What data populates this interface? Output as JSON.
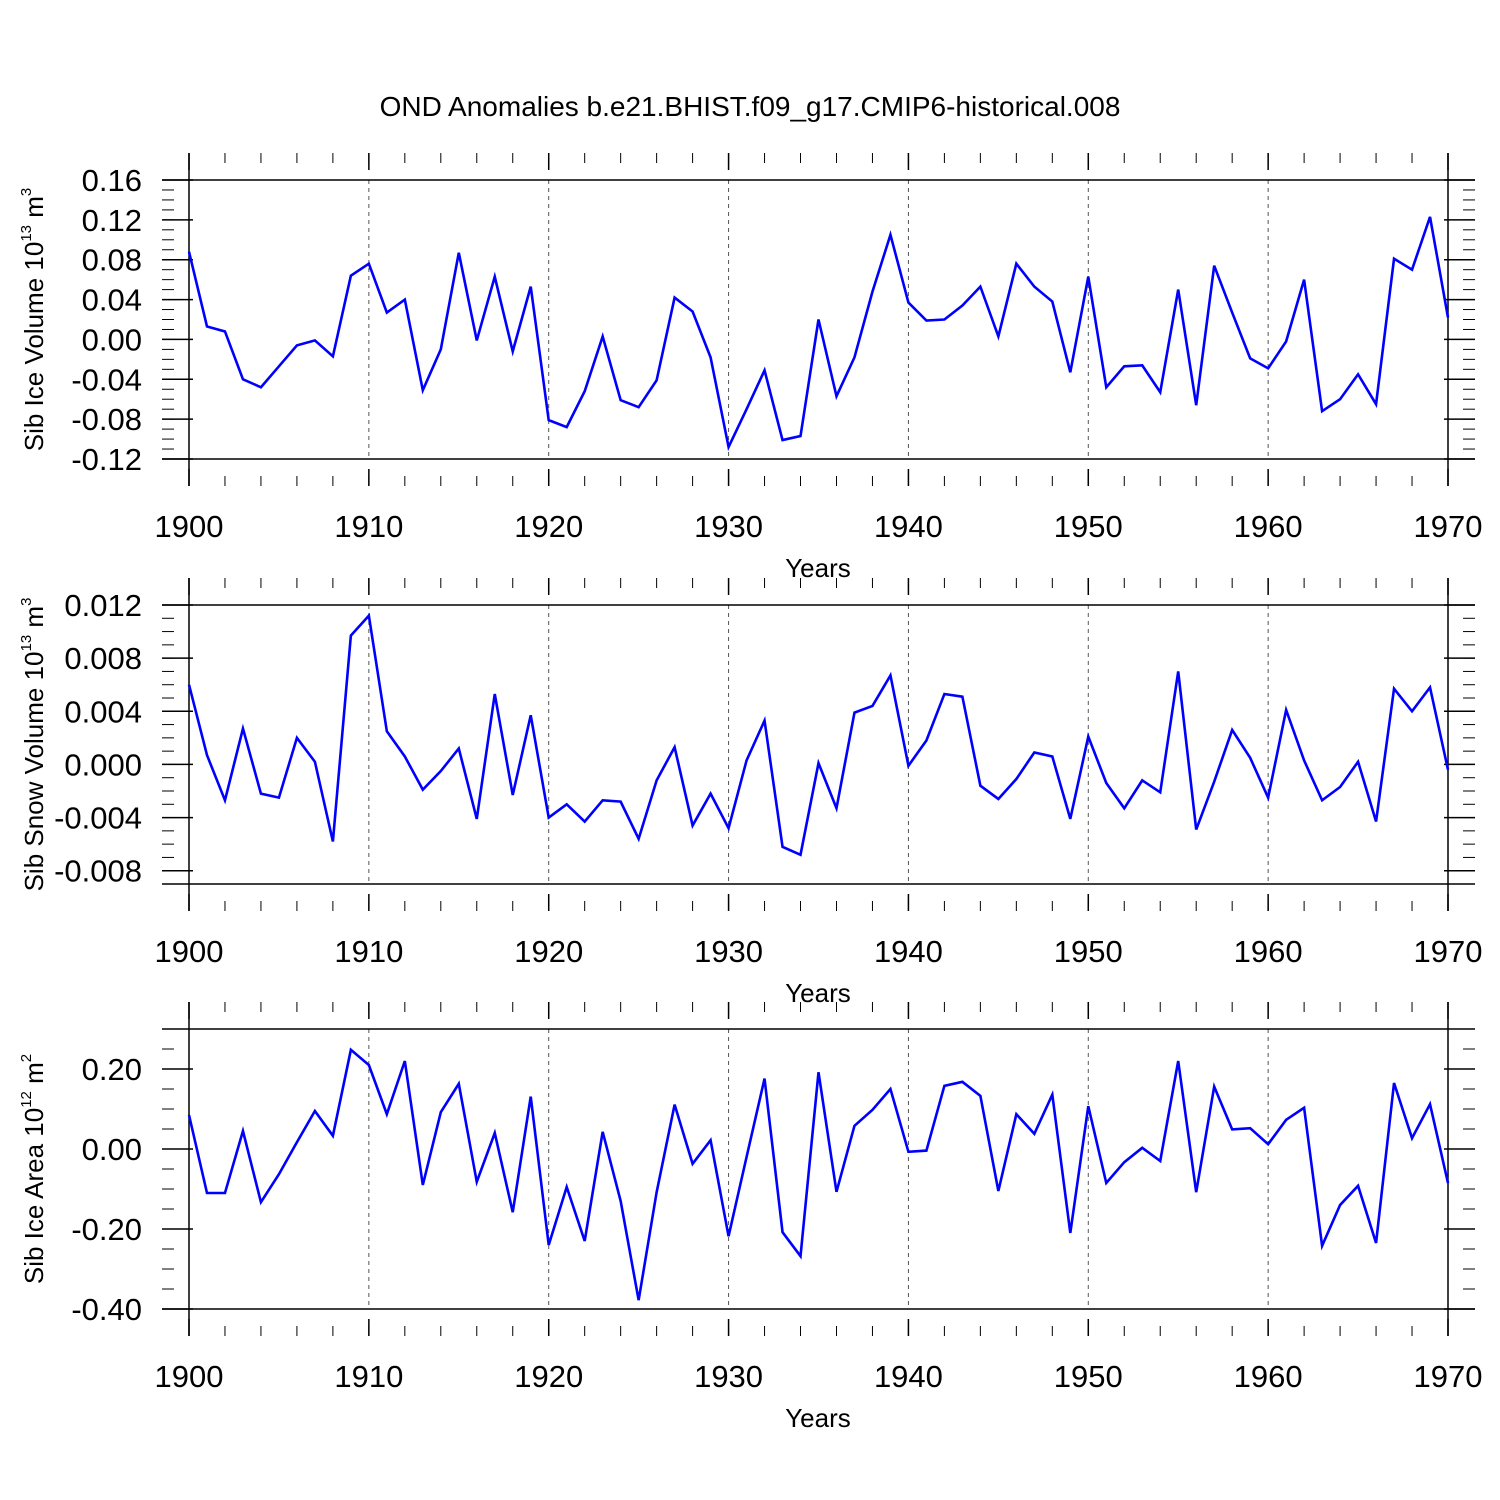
{
  "title": "OND Anomalies b.e21.BHIST.f09_g17.CMIP6-historical.008",
  "style": {
    "line_color": "#0000ff",
    "axis_color": "#000000",
    "grid_color": "#555555"
  },
  "chart_data": [
    {
      "type": "line",
      "ylabel": {
        "prefix": "Sib Ice Volume 10",
        "exp": "13",
        "unit": " m",
        "unit_exp": "3"
      },
      "xlabel": "Years",
      "xlim": [
        1900,
        1970
      ],
      "ylim": [
        -0.12,
        0.16
      ],
      "yticks": [
        -0.12,
        -0.08,
        -0.04,
        0.0,
        0.04,
        0.08,
        0.12,
        0.16
      ],
      "ytick_labels": [
        "-0.12",
        "-0.08",
        "-0.04",
        "0.00",
        "0.04",
        "0.08",
        "0.12",
        "0.16"
      ],
      "xticks": [
        1900,
        1910,
        1920,
        1930,
        1940,
        1950,
        1960,
        1970
      ],
      "xtick_labels": [
        "1900",
        "1910",
        "1920",
        "1930",
        "1940",
        "1950",
        "1960",
        "1970"
      ],
      "grid": "vertical dashed at decades",
      "series": [
        {
          "x_start": 1900,
          "values": [
            0.088,
            0.013,
            0.008,
            -0.04,
            -0.048,
            -0.027,
            -0.006,
            -0.001,
            -0.017,
            0.064,
            0.076,
            0.027,
            0.04,
            -0.051,
            -0.01,
            0.087,
            -0.001,
            0.063,
            -0.012,
            0.053,
            -0.081,
            -0.088,
            -0.052,
            0.003,
            -0.061,
            -0.068,
            -0.041,
            0.042,
            0.028,
            -0.018,
            -0.108,
            -0.07,
            -0.031,
            -0.101,
            -0.097,
            0.02,
            -0.057,
            -0.018,
            0.048,
            0.105,
            0.037,
            0.019,
            0.02,
            0.034,
            0.053,
            0.003,
            0.076,
            0.053,
            0.038,
            -0.033,
            0.063,
            -0.048,
            -0.027,
            -0.026,
            -0.053,
            0.05,
            -0.066,
            0.074,
            0.027,
            -0.019,
            -0.029,
            -0.002,
            0.06,
            -0.072,
            -0.06,
            -0.035,
            -0.065,
            0.081,
            0.07,
            0.123,
            0.022
          ]
        }
      ]
    },
    {
      "type": "line",
      "ylabel": {
        "prefix": "Sib Snow Volume 10",
        "exp": "13",
        "unit": " m",
        "unit_exp": "3"
      },
      "xlabel": "Years",
      "xlim": [
        1900,
        1970
      ],
      "ylim": [
        -0.009,
        0.012
      ],
      "yticks": [
        -0.008,
        -0.004,
        0.0,
        0.004,
        0.008,
        0.012
      ],
      "ytick_labels": [
        "-0.008",
        "-0.004",
        "0.000",
        "0.004",
        "0.008",
        "0.012"
      ],
      "xticks": [
        1900,
        1910,
        1920,
        1930,
        1940,
        1950,
        1960,
        1970
      ],
      "xtick_labels": [
        "1900",
        "1910",
        "1920",
        "1930",
        "1940",
        "1950",
        "1960",
        "1970"
      ],
      "grid": "vertical dashed at decades",
      "series": [
        {
          "x_start": 1900,
          "values": [
            0.006,
            0.0007,
            -0.0027,
            0.0027,
            -0.0022,
            -0.0025,
            0.002,
            0.0002,
            -0.0058,
            0.0097,
            0.0112,
            0.0025,
            0.0006,
            -0.0019,
            -0.0005,
            0.0012,
            -0.0041,
            0.0053,
            -0.0023,
            0.0037,
            -0.004,
            -0.003,
            -0.0043,
            -0.0027,
            -0.0028,
            -0.0056,
            -0.0012,
            0.0013,
            -0.0046,
            -0.0022,
            -0.0048,
            0.0003,
            0.0033,
            -0.0062,
            -0.0068,
            0.0001,
            -0.0033,
            0.0039,
            0.0044,
            0.0067,
            -0.0001,
            0.0018,
            0.0053,
            0.0051,
            -0.0016,
            -0.0026,
            -0.0011,
            0.0009,
            0.0006,
            -0.0041,
            0.0021,
            -0.0014,
            -0.0033,
            -0.0012,
            -0.0021,
            0.007,
            -0.0049,
            -0.0013,
            0.0026,
            0.0005,
            -0.0025,
            0.0041,
            0.0003,
            -0.0027,
            -0.0017,
            0.0002,
            -0.0043,
            0.0057,
            0.004,
            0.0058,
            -0.0004
          ]
        }
      ]
    },
    {
      "type": "line",
      "ylabel": {
        "prefix": "Sib Ice Area 10",
        "exp": "12",
        "unit": " m",
        "unit_exp": "2"
      },
      "xlabel": "Years",
      "xlim": [
        1900,
        1970
      ],
      "ylim": [
        -0.4,
        0.3
      ],
      "yticks": [
        -0.4,
        -0.2,
        0.0,
        0.2
      ],
      "ytick_labels": [
        "-0.40",
        "-0.20",
        "0.00",
        "0.20"
      ],
      "xticks": [
        1900,
        1910,
        1920,
        1930,
        1940,
        1950,
        1960,
        1970
      ],
      "xtick_labels": [
        "1900",
        "1910",
        "1920",
        "1930",
        "1940",
        "1950",
        "1960",
        "1970"
      ],
      "grid": "vertical dashed at decades",
      "series": [
        {
          "x_start": 1900,
          "values": [
            0.085,
            -0.11,
            -0.11,
            0.045,
            -0.133,
            -0.063,
            0.017,
            0.095,
            0.033,
            0.248,
            0.21,
            0.087,
            0.22,
            -0.09,
            0.092,
            0.163,
            -0.082,
            0.04,
            -0.158,
            0.131,
            -0.24,
            -0.095,
            -0.23,
            0.043,
            -0.13,
            -0.378,
            -0.108,
            0.111,
            -0.037,
            0.022,
            -0.218,
            -0.02,
            0.176,
            -0.208,
            -0.268,
            0.192,
            -0.107,
            0.058,
            0.098,
            0.15,
            -0.007,
            -0.004,
            0.158,
            0.168,
            0.133,
            -0.105,
            0.087,
            0.038,
            0.136,
            -0.21,
            0.107,
            -0.085,
            -0.033,
            0.003,
            -0.03,
            0.22,
            -0.108,
            0.156,
            0.049,
            0.052,
            0.012,
            0.073,
            0.103,
            -0.242,
            -0.14,
            -0.092,
            -0.235,
            0.165,
            0.027,
            0.112,
            -0.085
          ]
        }
      ]
    }
  ]
}
